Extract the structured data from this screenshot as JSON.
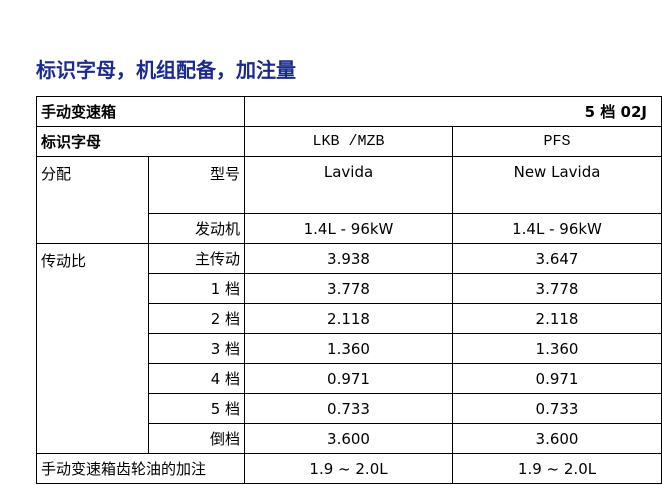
{
  "title": "标识字母，机组配备，加注量",
  "table": {
    "header": {
      "label": "手动变速箱",
      "value": "5 档 02J"
    },
    "code_row": {
      "label": "标识字母",
      "values": [
        "LKB /MZB",
        "PFS"
      ]
    },
    "groups": [
      {
        "label": "分配",
        "rows": [
          {
            "label": "型号",
            "values": [
              "Lavida",
              "New Lavida"
            ]
          },
          {
            "label": "发动机",
            "values": [
              "1.4L - 96kW",
              "1.4L - 96kW"
            ]
          }
        ]
      },
      {
        "label": "传动比",
        "rows": [
          {
            "label": "主传动",
            "values": [
              "3.938",
              "3.647"
            ]
          },
          {
            "label": "1 档",
            "values": [
              "3.778",
              "3.778"
            ]
          },
          {
            "label": "2 档",
            "values": [
              "2.118",
              "2.118"
            ]
          },
          {
            "label": "3 档",
            "values": [
              "1.360",
              "1.360"
            ]
          },
          {
            "label": "4 档",
            "values": [
              "0.971",
              "0.971"
            ]
          },
          {
            "label": "5 档",
            "values": [
              "0.733",
              "0.733"
            ]
          },
          {
            "label": "倒档",
            "values": [
              "3.600",
              "3.600"
            ]
          }
        ]
      }
    ],
    "footer": {
      "label": "手动变速箱齿轮油的加注",
      "values": [
        "1.9 ~ 2.0L",
        "1.9 ~ 2.0L"
      ]
    }
  }
}
